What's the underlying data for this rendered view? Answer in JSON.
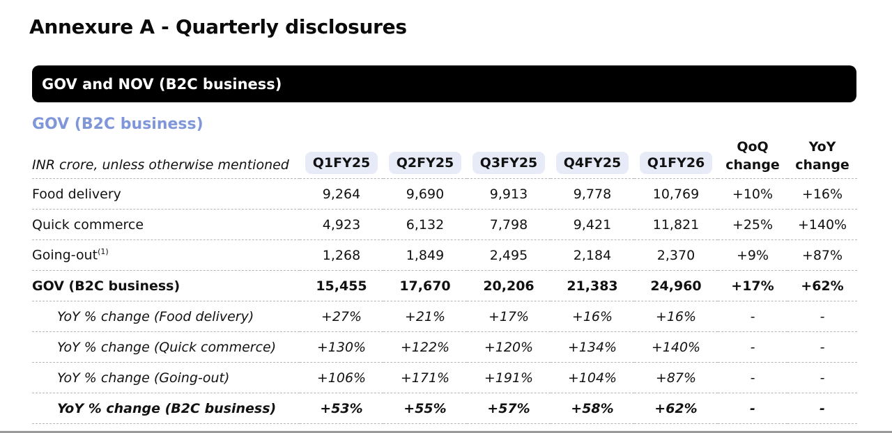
{
  "page": {
    "title": "Annexure A - Quarterly disclosures",
    "section_header": "GOV and NOV (B2C business)",
    "subtitle": "GOV (B2C business)"
  },
  "table": {
    "unit_label": "INR crore, unless otherwise mentioned",
    "columns": [
      "Q1FY25",
      "Q2FY25",
      "Q3FY25",
      "Q4FY25",
      "Q1FY26"
    ],
    "qoq_header": [
      "QoQ",
      "change"
    ],
    "yoy_header": [
      "YoY",
      "change"
    ],
    "rows": [
      {
        "label": "Food delivery",
        "sup": "",
        "values": [
          "9,264",
          "9,690",
          "9,913",
          "9,778",
          "10,769"
        ],
        "qoq": "+10%",
        "yoy": "+16%",
        "style": "normal"
      },
      {
        "label": "Quick commerce",
        "sup": "",
        "values": [
          "4,923",
          "6,132",
          "7,798",
          "9,421",
          "11,821"
        ],
        "qoq": "+25%",
        "yoy": "+140%",
        "style": "normal"
      },
      {
        "label": "Going-out",
        "sup": "(1)",
        "values": [
          "1,268",
          "1,849",
          "2,495",
          "2,184",
          "2,370"
        ],
        "qoq": "+9%",
        "yoy": "+87%",
        "style": "normal"
      },
      {
        "label": "GOV (B2C business)",
        "sup": "",
        "values": [
          "15,455",
          "17,670",
          "20,206",
          "21,383",
          "24,960"
        ],
        "qoq": "+17%",
        "yoy": "+62%",
        "style": "bold"
      },
      {
        "label": "YoY % change (Food delivery)",
        "sup": "",
        "values": [
          "+27%",
          "+21%",
          "+17%",
          "+16%",
          "+16%"
        ],
        "qoq": "-",
        "yoy": "-",
        "style": "italic"
      },
      {
        "label": "YoY % change (Quick commerce)",
        "sup": "",
        "values": [
          "+130%",
          "+122%",
          "+120%",
          "+134%",
          "+140%"
        ],
        "qoq": "-",
        "yoy": "-",
        "style": "italic"
      },
      {
        "label": "YoY % change (Going-out)",
        "sup": "",
        "values": [
          "+106%",
          "+171%",
          "+191%",
          "+104%",
          "+87%"
        ],
        "qoq": "-",
        "yoy": "-",
        "style": "italic"
      },
      {
        "label": "YoY % change (B2C business)",
        "sup": "",
        "values": [
          "+53%",
          "+55%",
          "+57%",
          "+58%",
          "+62%"
        ],
        "qoq": "-",
        "yoy": "-",
        "style": "bold italic"
      }
    ]
  },
  "colors": {
    "subtitle_accent": "#7f96d9",
    "pill_background": "#e7ebf8",
    "header_bar": "#000000"
  }
}
